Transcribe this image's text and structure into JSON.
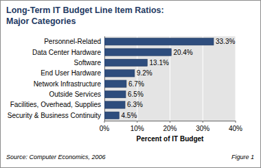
{
  "chart_data": {
    "type": "bar",
    "orientation": "horizontal",
    "title": "Long-Term IT Budget Line Item Ratios:",
    "subtitle": "Major Categories",
    "categories": [
      "Personnel-Related",
      "Data Center Hardware",
      "Software",
      "End User Hardware",
      "Network Infrastructure",
      "Outside Services",
      "Facilities, Overhead, Supplies",
      "Security & Business Continuity"
    ],
    "values": [
      33.3,
      20.4,
      13.1,
      9.2,
      6.7,
      6.5,
      6.3,
      4.5
    ],
    "value_labels": [
      "33.3%",
      "20.4%",
      "13.1%",
      "9.2%",
      "6.7%",
      "6.5%",
      "6.3%",
      "4.5%"
    ],
    "color": "#2e4d7d",
    "xlabel": "Percent of IT Budget",
    "xlim": [
      0,
      40
    ],
    "xticks": [
      {
        "value": 0,
        "label": "0%"
      },
      {
        "value": 10,
        "label": "10%"
      },
      {
        "value": 20,
        "label": "20%"
      },
      {
        "value": 30,
        "label": "30%"
      },
      {
        "value": 40,
        "label": "40%"
      }
    ],
    "grid": true,
    "data_labels": true,
    "annotations": [
      "Source: Computer Economics, 2006",
      "Figure 1"
    ]
  }
}
